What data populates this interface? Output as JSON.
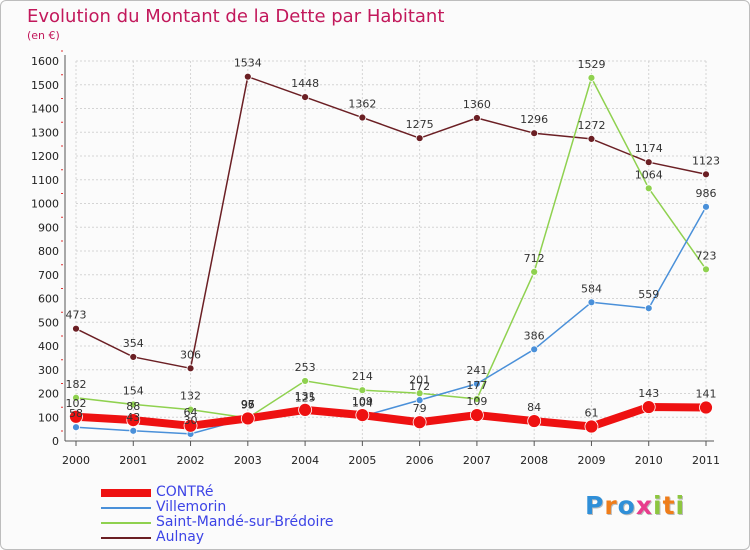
{
  "chart_data": {
    "type": "line",
    "title": "Evolution du Montant de la Dette par Habitant",
    "unit_label": "(en €)",
    "xlabel": "",
    "ylabel": "",
    "ylim": [
      0,
      1600
    ],
    "y_ticks": [
      0,
      100,
      200,
      300,
      400,
      500,
      600,
      700,
      800,
      900,
      1000,
      1100,
      1200,
      1300,
      1400,
      1500,
      1600
    ],
    "categories": [
      "2000",
      "2001",
      "2002",
      "2003",
      "2004",
      "2005",
      "2006",
      "2007",
      "2008",
      "2009",
      "2010",
      "2011"
    ],
    "grid": true,
    "legend_position": "bottom-left",
    "series": [
      {
        "name": "Aulnay",
        "color": "#6b1f24",
        "values": [
          473,
          354,
          306,
          1534,
          1448,
          1362,
          1275,
          1360,
          1296,
          1272,
          1174,
          1123
        ],
        "labels": [
          "473",
          "354",
          "306",
          "1534",
          "1448",
          "1362",
          "1275",
          "1360",
          "1296",
          "1272",
          "1174",
          "1123"
        ]
      },
      {
        "name": "Saint-Mandé-sur-Brédoire",
        "color": "#8fd14f",
        "values": [
          182,
          154,
          132,
          97,
          253,
          214,
          201,
          177,
          712,
          1529,
          1064,
          723
        ],
        "labels": [
          "182",
          "154",
          "132",
          "97",
          "253",
          "214",
          "201",
          "177",
          "712",
          "1529",
          "1064",
          "723"
        ]
      },
      {
        "name": "Villemorin",
        "color": "#4a90d9",
        "values": [
          58,
          43,
          30,
          96,
          125,
          104,
          172,
          241,
          386,
          584,
          559,
          986
        ],
        "labels": [
          "58",
          "43",
          "30",
          "96",
          "125",
          "104",
          "172",
          "241",
          "386",
          "584",
          "559",
          "986"
        ]
      },
      {
        "name": "CONTRé",
        "color": "#ee1111",
        "values": [
          102,
          88,
          64,
          95,
          131,
          109,
          79,
          109,
          84,
          61,
          143,
          141
        ],
        "labels": [
          "102",
          "88",
          "64",
          "95",
          "131",
          "109",
          "79",
          "109",
          "84",
          "61",
          "143",
          "141"
        ]
      }
    ],
    "legend": [
      {
        "name": "CONTRé",
        "color": "#ee1111"
      },
      {
        "name": "Villemorin",
        "color": "#4a90d9"
      },
      {
        "name": "Saint-Mandé-sur-Brédoire",
        "color": "#8fd14f"
      },
      {
        "name": "Aulnay",
        "color": "#6b1f24"
      }
    ]
  },
  "logo": {
    "letters": [
      "P",
      "r",
      "o",
      "x",
      "i",
      "t",
      "i"
    ],
    "colors": [
      "#2f8fd8",
      "#ef7d1a",
      "#2f8fd8",
      "#e83c8c",
      "#8dc63f",
      "#ef7d1a",
      "#8dc63f"
    ]
  }
}
